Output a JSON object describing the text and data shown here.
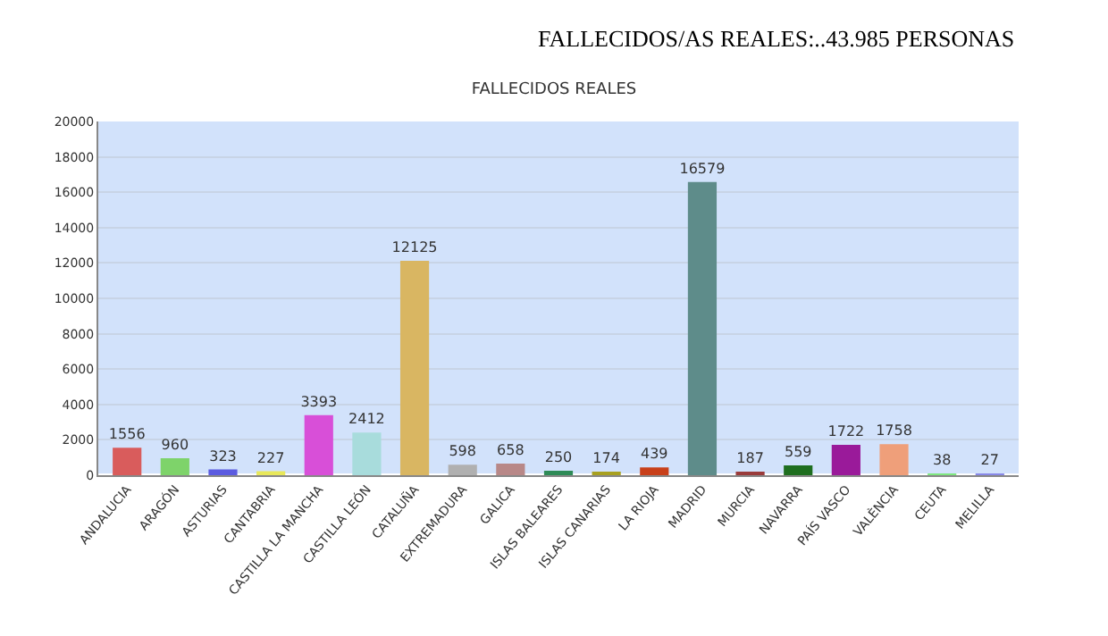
{
  "chart_data": {
    "type": "bar",
    "title": "FALLECIDOS REALES",
    "annotations": [
      "FALLECIDOS/AS REALES:..43.985 PERSONAS"
    ],
    "categories": [
      "ANDALUCIA",
      "ARAGÓN",
      "ASTURIAS",
      "CANTABRIA",
      "CASTILLA LA MANCHA",
      "CASTILLA LEÓN",
      "CATALUÑA",
      "EXTREMADURA",
      "GALICA",
      "ISLAS BALEARES",
      "ISLAS CANARIAS",
      "LA RIOJA",
      "MADRID",
      "MURCIA",
      "NAVARRA",
      "PAÍS VASCO",
      "VALÈNCIA",
      "CEUTA",
      "MELILLA"
    ],
    "values": [
      1556,
      960,
      323,
      227,
      3393,
      2412,
      12125,
      598,
      658,
      250,
      174,
      439,
      16579,
      187,
      559,
      1722,
      1758,
      38,
      27
    ],
    "colors": [
      "#d95c5c",
      "#7ed36a",
      "#5b5be0",
      "#e8e85a",
      "#d84fd8",
      "#a8dcdc",
      "#d9b662",
      "#b0b0b0",
      "#b88888",
      "#2e8b57",
      "#a8a020",
      "#c8401a",
      "#5e8c8a",
      "#9a3b3b",
      "#1f6e1f",
      "#9a1a9a",
      "#ef9f7a",
      "#7ee87e",
      "#8888e8"
    ],
    "ylim": [
      0,
      20000
    ],
    "yticks": [
      0,
      2000,
      4000,
      6000,
      8000,
      10000,
      12000,
      14000,
      16000,
      18000,
      20000
    ],
    "grid": "y",
    "data_labels": true
  }
}
